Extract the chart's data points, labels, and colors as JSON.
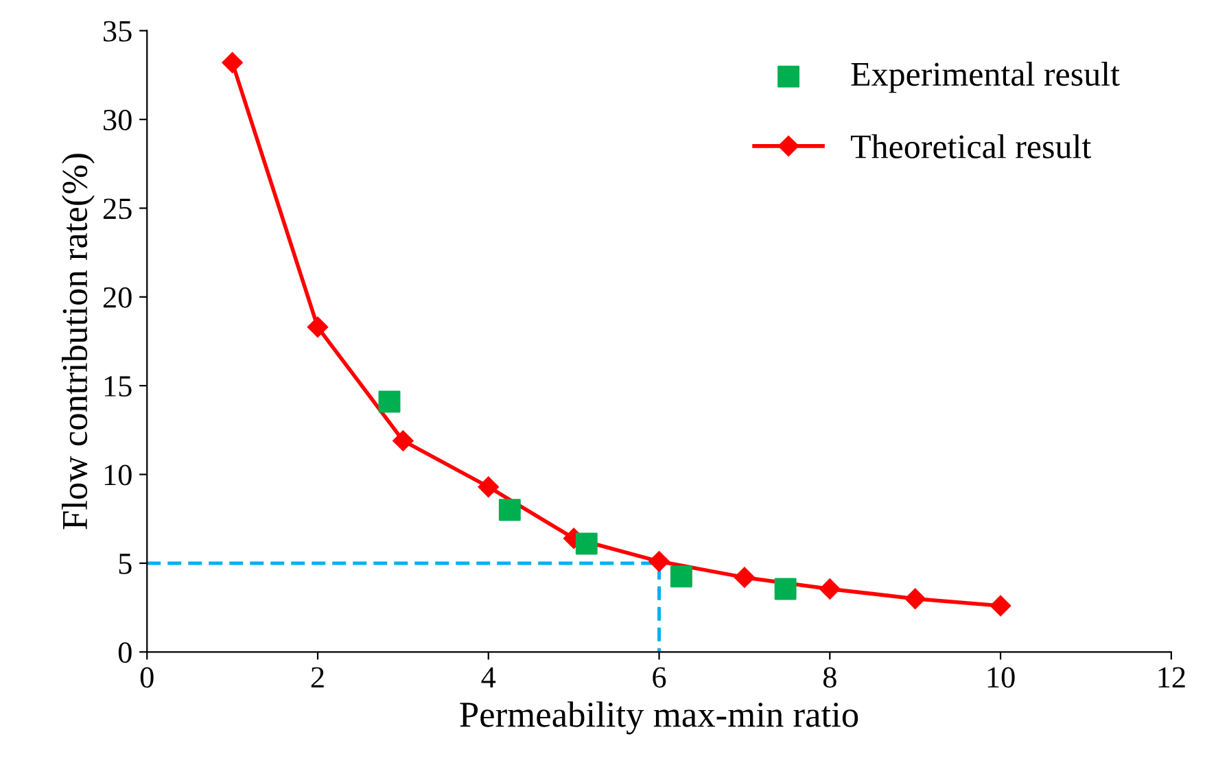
{
  "chart_data": {
    "type": "scatter",
    "xlabel": "Permeability max-min ratio",
    "ylabel": "Flow contribution rate(%)",
    "xlim": [
      0,
      12
    ],
    "xticks": [
      0,
      2,
      4,
      6,
      8,
      10,
      12
    ],
    "ylim": [
      0,
      35
    ],
    "yticks": [
      0,
      5,
      10,
      15,
      20,
      25,
      30,
      35
    ],
    "grid": false,
    "legend": "top right",
    "series": [
      {
        "name": "Experimental result",
        "marker": "square",
        "color": "#00b050",
        "x": [
          2.84,
          4.25,
          5.15,
          6.26,
          7.48
        ],
        "values": [
          14.1,
          8.0,
          6.1,
          4.25,
          3.55
        ]
      },
      {
        "name": "Theoretical result",
        "type": "line",
        "marker": "diamond",
        "line_style": "solid",
        "color": "#ff0000",
        "x": [
          1,
          2,
          3,
          4,
          5,
          6,
          7,
          8,
          9,
          10
        ],
        "values": [
          33.2,
          18.3,
          11.9,
          9.3,
          6.4,
          5.1,
          4.2,
          3.55,
          3.0,
          2.6
        ]
      },
      {
        "type": "line",
        "marker": "none",
        "line_style": "dashed",
        "color": "#00b0f0",
        "x": [
          0,
          6,
          6
        ],
        "values": [
          5,
          5,
          0
        ]
      }
    ]
  }
}
